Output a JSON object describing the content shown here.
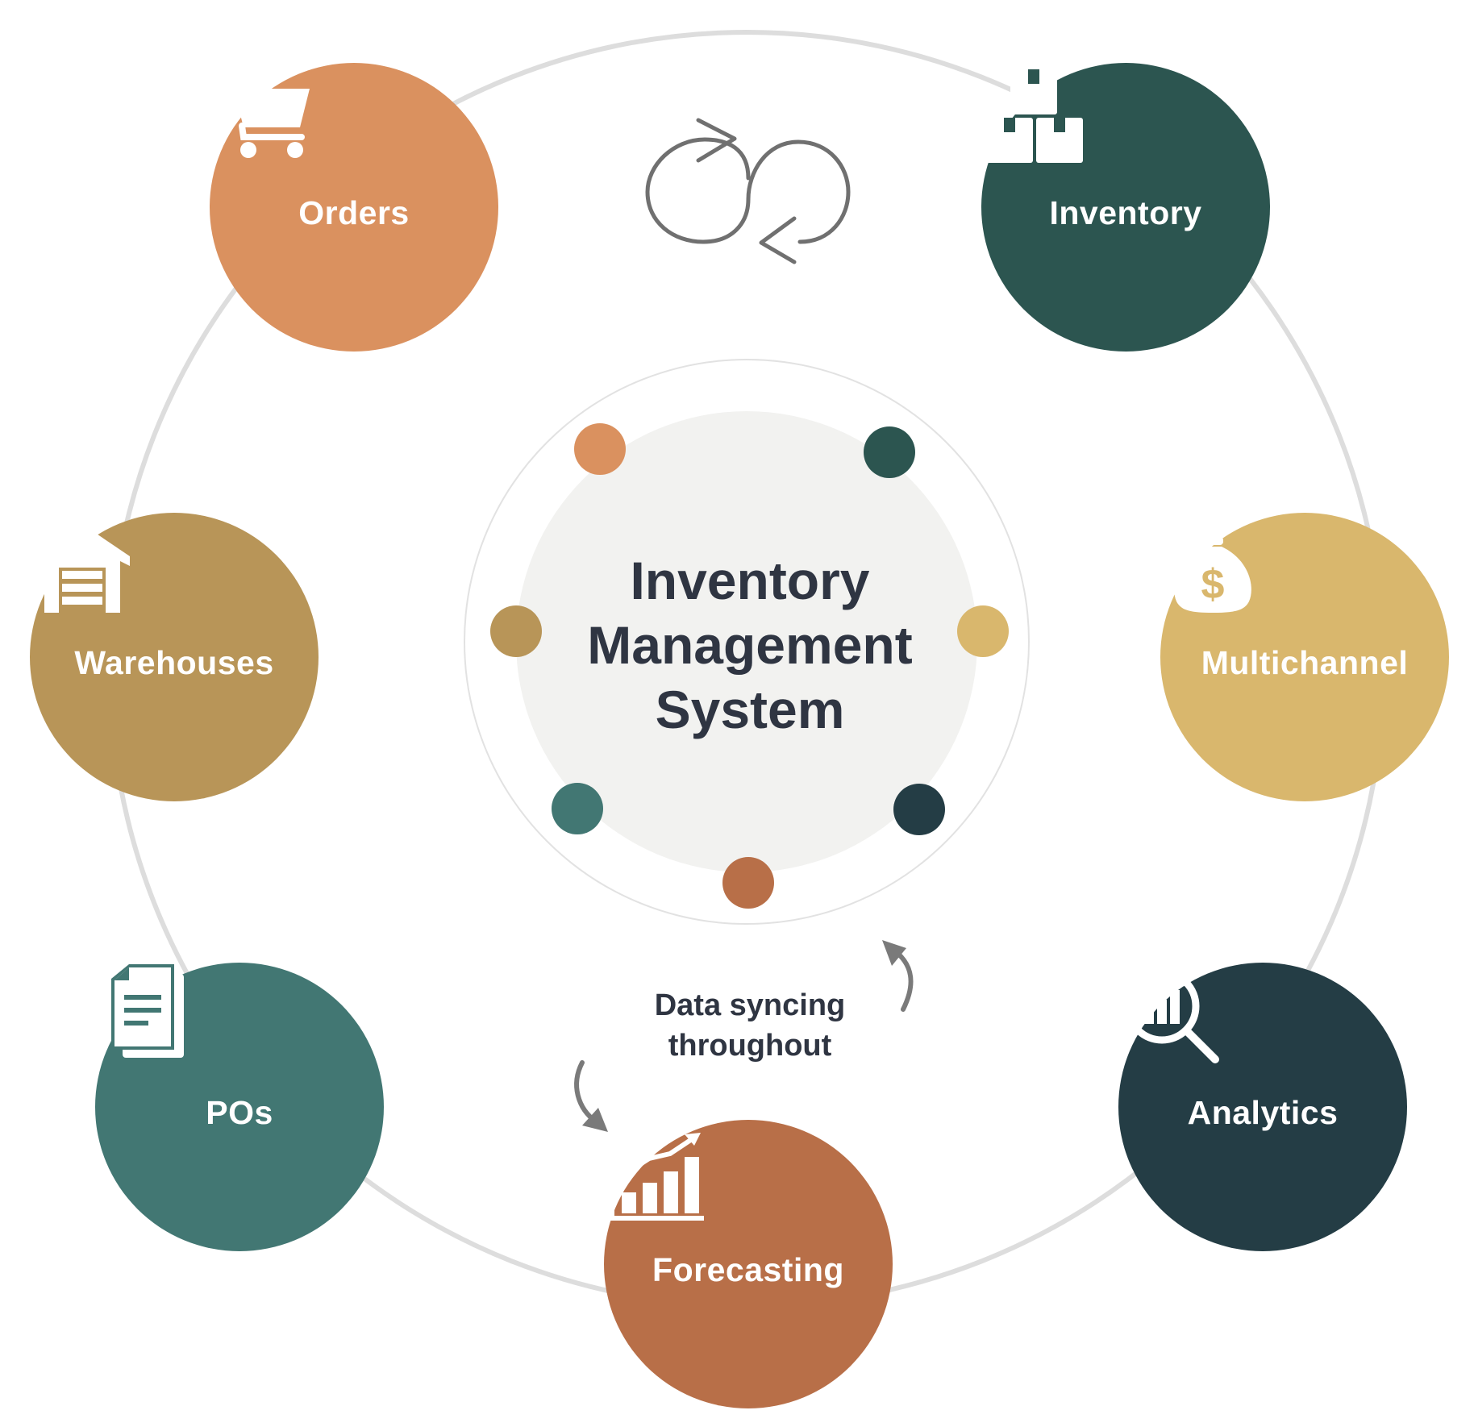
{
  "center": {
    "title_lines": [
      "Inventory",
      "Management",
      "System"
    ]
  },
  "sync_caption": {
    "lines": [
      "Data syncing",
      "throughout"
    ]
  },
  "nodes": [
    {
      "label": "Orders",
      "icon": "cart-icon",
      "color": "#DA915F"
    },
    {
      "label": "Inventory",
      "icon": "boxes-icon",
      "color": "#2C5550"
    },
    {
      "label": "Multichannel",
      "icon": "money-bag-icon",
      "color": "#D9B76D"
    },
    {
      "label": "Analytics",
      "icon": "analytics-magnifier-icon",
      "color": "#243D45"
    },
    {
      "label": "Forecasting",
      "icon": "growth-chart-icon",
      "color": "#B86F48"
    },
    {
      "label": "POs",
      "icon": "documents-icon",
      "color": "#427773"
    },
    {
      "label": "Warehouses",
      "icon": "warehouse-icon",
      "color": "#B89558"
    }
  ],
  "colors": {
    "outer_ring": "#DDDDDD",
    "inner_disc": "#F2F2F0",
    "inner_ring": "#E2E2E2",
    "sync_icon": "#707070",
    "arrow": "#7A7A7A",
    "text_dark": "#2F3542"
  }
}
